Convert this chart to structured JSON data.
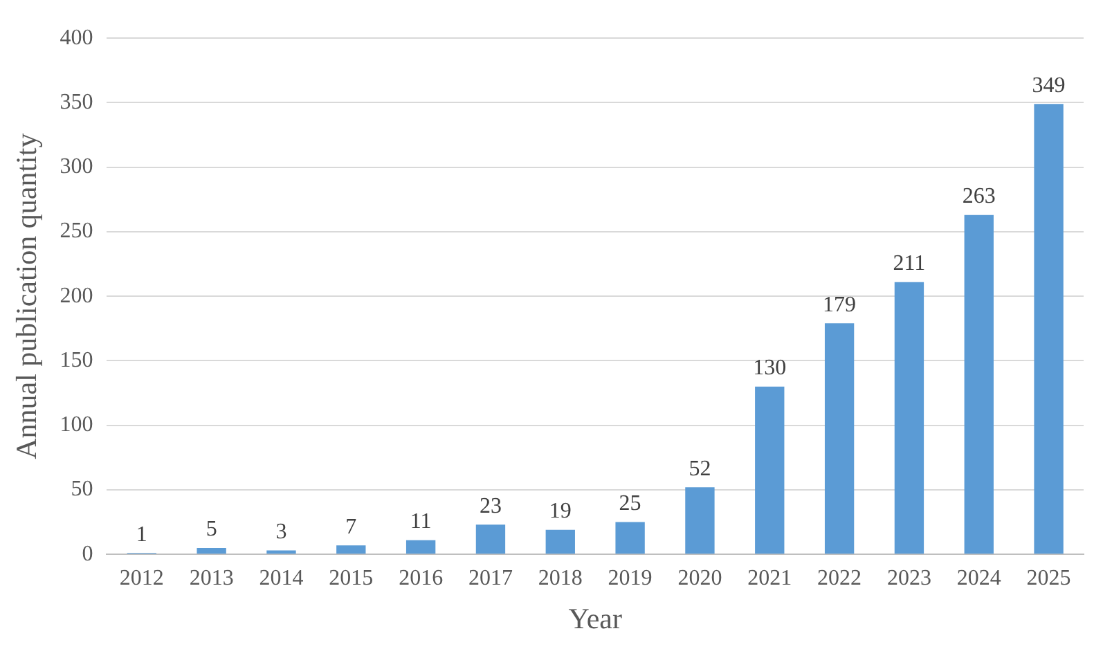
{
  "chart_data": {
    "type": "bar",
    "xlabel": "Year",
    "ylabel": "Annual publication quantity",
    "categories": [
      "2012",
      "2013",
      "2014",
      "2015",
      "2016",
      "2017",
      "2018",
      "2019",
      "2020",
      "2021",
      "2022",
      "2023",
      "2024",
      "2025"
    ],
    "values": [
      1,
      5,
      3,
      7,
      11,
      23,
      19,
      25,
      52,
      130,
      179,
      211,
      263,
      349
    ],
    "color": "#5b9bd5",
    "ylim": [
      0,
      400
    ],
    "yticks": [
      0,
      50,
      100,
      150,
      200,
      250,
      300,
      350,
      400
    ],
    "grid": "y",
    "legend": false,
    "data_labels": true
  }
}
